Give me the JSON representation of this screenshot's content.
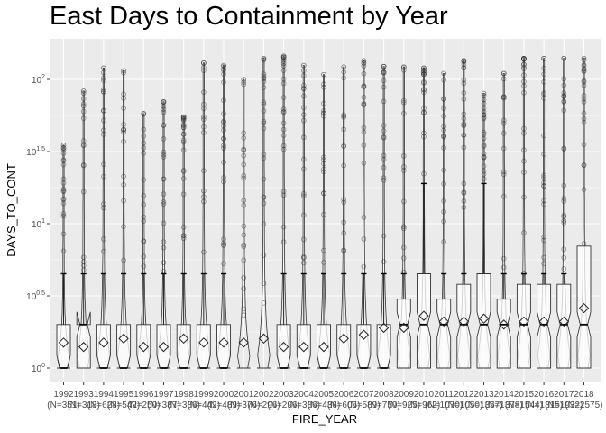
{
  "chart_data": {
    "type": "boxplot",
    "title": "East Days to Containment by Year",
    "xlabel": "FIRE_YEAR",
    "ylabel": "DAYS_TO_CONT",
    "y_scale": "log10",
    "ylim": [
      1,
      140
    ],
    "y_ticks": [
      {
        "value": 1,
        "base": "10",
        "exp": "0"
      },
      {
        "value": 3.1623,
        "base": "10",
        "exp": "0.5"
      },
      {
        "value": 10,
        "base": "10",
        "exp": "1"
      },
      {
        "value": 31.623,
        "base": "10",
        "exp": "1.5"
      },
      {
        "value": 100,
        "base": "10",
        "exp": "2"
      }
    ],
    "grid": true,
    "legend": "none",
    "markers": {
      "mean": "diamond",
      "outlier": "open-circle",
      "notched": true,
      "violin": true
    },
    "categories": [
      "1992",
      "1993",
      "1994",
      "1995",
      "1996",
      "1997",
      "1998",
      "1999",
      "2000",
      "2001",
      "2002",
      "2003",
      "2004",
      "2005",
      "2006",
      "2007",
      "2008",
      "2009",
      "2010",
      "2011",
      "2012",
      "2013",
      "2014",
      "2015",
      "2016",
      "2017",
      "2018"
    ],
    "n_labels": [
      "(N=351)",
      "(N=318)",
      "(N=628)",
      "(N=542)",
      "(N=250)",
      "(N=387)",
      "(N=386)",
      "(N=442)",
      "(N=489)",
      "(N=376)",
      "(N=296)",
      "(N=296)",
      "(N=386)",
      "(N=436)",
      "(N=605)",
      "(N=589)",
      "(N=750)",
      "(N=925)",
      "(N=962)",
      "(N=1070)",
      "(N=1050)",
      "(N=1357)",
      "(N=1378)",
      "(N=1544)",
      "(N=1815)",
      "(N=1932)",
      "(N=2575)"
    ],
    "series": [
      {
        "name": "1992",
        "q1": 1,
        "median": 1,
        "q3": 2,
        "whisker_high": 4.5,
        "mean": 1.5,
        "max": 35
      },
      {
        "name": "1993",
        "q1": 1,
        "median": 2,
        "q3": 2,
        "whisker_high": 4.5,
        "mean": 1.4,
        "max": 83
      },
      {
        "name": "1994",
        "q1": 1,
        "median": 1,
        "q3": 2,
        "whisker_high": 4.5,
        "mean": 1.5,
        "max": 120
      },
      {
        "name": "1995",
        "q1": 1,
        "median": 1,
        "q3": 2,
        "whisker_high": 4.5,
        "mean": 1.6,
        "max": 115
      },
      {
        "name": "1996",
        "q1": 1,
        "median": 1,
        "q3": 2,
        "whisker_high": 4.5,
        "mean": 1.4,
        "max": 58
      },
      {
        "name": "1997",
        "q1": 1,
        "median": 1,
        "q3": 2,
        "whisker_high": 4.5,
        "mean": 1.4,
        "max": 70
      },
      {
        "name": "1998",
        "q1": 1,
        "median": 1,
        "q3": 2,
        "whisker_high": 4.5,
        "mean": 1.6,
        "max": 55
      },
      {
        "name": "1999",
        "q1": 1,
        "median": 1,
        "q3": 2,
        "whisker_high": 4.5,
        "mean": 1.5,
        "max": 130
      },
      {
        "name": "2000",
        "q1": 1,
        "median": 1,
        "q3": 2,
        "whisker_high": 4.5,
        "mean": 1.5,
        "max": 125
      },
      {
        "name": "2001",
        "q1": 1,
        "median": 1,
        "q3": 1,
        "whisker_high": 1,
        "mean": 1.5,
        "max": 100
      },
      {
        "name": "2002",
        "q1": 1,
        "median": 1,
        "q3": 1,
        "whisker_high": 1,
        "mean": 1.6,
        "max": 140
      },
      {
        "name": "2003",
        "q1": 1,
        "median": 1,
        "q3": 2,
        "whisker_high": 4.5,
        "mean": 1.4,
        "max": 145
      },
      {
        "name": "2004",
        "q1": 1,
        "median": 1,
        "q3": 2,
        "whisker_high": 4.5,
        "mean": 1.4,
        "max": 125
      },
      {
        "name": "2005",
        "q1": 1,
        "median": 1,
        "q3": 2,
        "whisker_high": 4.5,
        "mean": 1.4,
        "max": 108
      },
      {
        "name": "2006",
        "q1": 1,
        "median": 1,
        "q3": 2,
        "whisker_high": 4.5,
        "mean": 1.6,
        "max": 122
      },
      {
        "name": "2007",
        "q1": 1,
        "median": 1,
        "q3": 2,
        "whisker_high": 4.5,
        "mean": 1.7,
        "max": 135
      },
      {
        "name": "2008",
        "q1": 1,
        "median": 1,
        "q3": 2,
        "whisker_high": 4.5,
        "mean": 1.9,
        "max": 123
      },
      {
        "name": "2009",
        "q1": 1,
        "median": 2,
        "q3": 3,
        "whisker_high": 4.5,
        "mean": 1.9,
        "max": 122
      },
      {
        "name": "2010",
        "q1": 1,
        "median": 2,
        "q3": 4.5,
        "whisker_high": 19,
        "mean": 2.3,
        "max": 120
      },
      {
        "name": "2011",
        "q1": 1,
        "median": 2,
        "q3": 3,
        "whisker_high": 4.5,
        "mean": 2.1,
        "max": 110
      },
      {
        "name": "2012",
        "q1": 1,
        "median": 2,
        "q3": 3.8,
        "whisker_high": 4.5,
        "mean": 2.1,
        "max": 135
      },
      {
        "name": "2013",
        "q1": 1,
        "median": 2,
        "q3": 4.5,
        "whisker_high": 19,
        "mean": 2.2,
        "max": 80
      },
      {
        "name": "2014",
        "q1": 1,
        "median": 2,
        "q3": 3,
        "whisker_high": 4.5,
        "mean": 2.0,
        "max": 110
      },
      {
        "name": "2015",
        "q1": 1,
        "median": 2,
        "q3": 3.8,
        "whisker_high": 4.5,
        "mean": 2.1,
        "max": 140
      },
      {
        "name": "2016",
        "q1": 1,
        "median": 2,
        "q3": 3.8,
        "whisker_high": 4.5,
        "mean": 2.1,
        "max": 140
      },
      {
        "name": "2017",
        "q1": 1,
        "median": 2,
        "q3": 3.8,
        "whisker_high": 4.5,
        "mean": 2.1,
        "max": 140
      },
      {
        "name": "2018",
        "q1": 1,
        "median": 2,
        "q3": 7,
        "whisker_high": 7,
        "mean": 2.6,
        "max": 140
      }
    ]
  }
}
